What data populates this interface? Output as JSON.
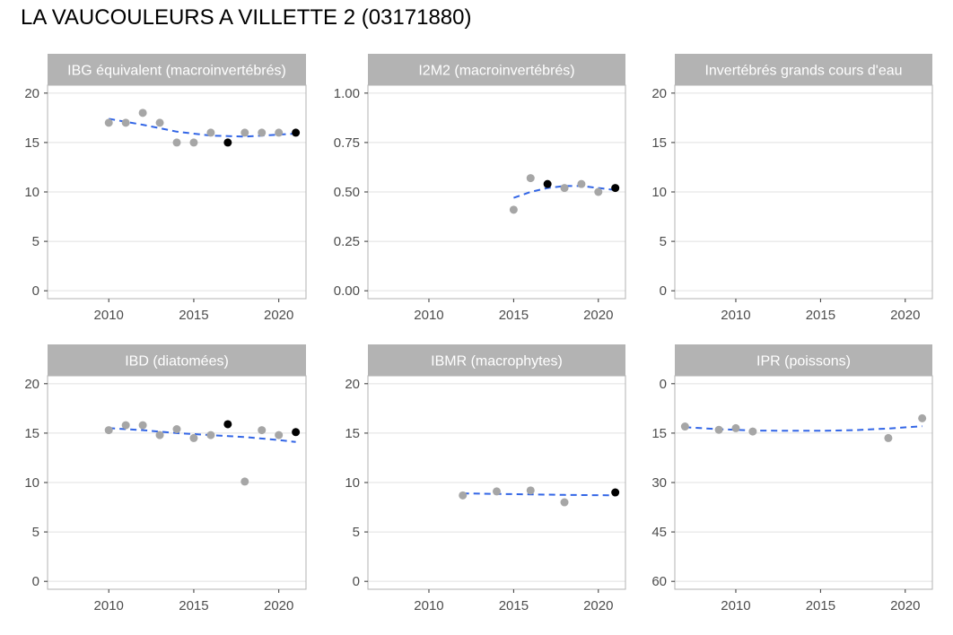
{
  "page_title": "LA VAUCOULEURS A VILLETTE 2 (03171880)",
  "colors": {
    "strip": "#b3b3b3",
    "grid": "#e0e0e0",
    "border": "#b3b3b3",
    "point_past": "#a6a6a6",
    "point_highlight": "#000000",
    "trend": "#3366e6"
  },
  "chart_data": [
    {
      "type": "scatter",
      "title": "IBG équivalent (macroinvertébrés)",
      "xlim": [
        2006.4,
        2021.6
      ],
      "ylim": [
        -0.8,
        20.8
      ],
      "x_ticks": [
        2010,
        2015,
        2020
      ],
      "y_ticks": [
        0,
        5,
        10,
        15,
        20
      ],
      "y_tick_labels": [
        "0",
        "5",
        "10",
        "15",
        "20"
      ],
      "y_reversed": false,
      "points": [
        {
          "x": 2010,
          "y": 17,
          "highlight": false
        },
        {
          "x": 2011,
          "y": 17,
          "highlight": false
        },
        {
          "x": 2012,
          "y": 18,
          "highlight": false
        },
        {
          "x": 2013,
          "y": 17,
          "highlight": false
        },
        {
          "x": 2014,
          "y": 15,
          "highlight": false
        },
        {
          "x": 2015,
          "y": 15,
          "highlight": false
        },
        {
          "x": 2016,
          "y": 16,
          "highlight": false
        },
        {
          "x": 2017,
          "y": 15,
          "highlight": true
        },
        {
          "x": 2018,
          "y": 16,
          "highlight": false
        },
        {
          "x": 2019,
          "y": 16,
          "highlight": false
        },
        {
          "x": 2020,
          "y": 16,
          "highlight": false
        },
        {
          "x": 2021,
          "y": 16,
          "highlight": true
        }
      ],
      "trend": [
        [
          2010,
          17.4
        ],
        [
          2012,
          16.8
        ],
        [
          2014,
          16.1
        ],
        [
          2016,
          15.7
        ],
        [
          2018,
          15.6
        ],
        [
          2020,
          15.8
        ],
        [
          2021,
          15.9
        ]
      ]
    },
    {
      "type": "scatter",
      "title": "I2M2 (macroinvertébrés)",
      "xlim": [
        2006.4,
        2021.6
      ],
      "ylim": [
        -0.04,
        1.04
      ],
      "x_ticks": [
        2010,
        2015,
        2020
      ],
      "y_ticks": [
        0,
        0.25,
        0.5,
        0.75,
        1
      ],
      "y_tick_labels": [
        "0.00",
        "0.25",
        "0.50",
        "0.75",
        "1.00"
      ],
      "y_reversed": false,
      "points": [
        {
          "x": 2015,
          "y": 0.41,
          "highlight": false
        },
        {
          "x": 2016,
          "y": 0.57,
          "highlight": false
        },
        {
          "x": 2017,
          "y": 0.54,
          "highlight": true
        },
        {
          "x": 2018,
          "y": 0.52,
          "highlight": false
        },
        {
          "x": 2019,
          "y": 0.54,
          "highlight": false
        },
        {
          "x": 2020,
          "y": 0.5,
          "highlight": false
        },
        {
          "x": 2021,
          "y": 0.52,
          "highlight": true
        }
      ],
      "trend": [
        [
          2015,
          0.47
        ],
        [
          2016,
          0.5
        ],
        [
          2017,
          0.52
        ],
        [
          2018,
          0.53
        ],
        [
          2019,
          0.53
        ],
        [
          2020,
          0.52
        ],
        [
          2021,
          0.51
        ]
      ]
    },
    {
      "type": "scatter",
      "title": "Invertébrés grands cours d'eau",
      "xlim": [
        2006.4,
        2021.6
      ],
      "ylim": [
        -0.8,
        20.8
      ],
      "x_ticks": [
        2010,
        2015,
        2020
      ],
      "y_ticks": [
        0,
        5,
        10,
        15,
        20
      ],
      "y_tick_labels": [
        "0",
        "5",
        "10",
        "15",
        "20"
      ],
      "y_reversed": false,
      "points": [],
      "trend": []
    },
    {
      "type": "scatter",
      "title": "IBD (diatomées)",
      "xlim": [
        2006.4,
        2021.6
      ],
      "ylim": [
        -0.8,
        20.8
      ],
      "x_ticks": [
        2010,
        2015,
        2020
      ],
      "y_ticks": [
        0,
        5,
        10,
        15,
        20
      ],
      "y_tick_labels": [
        "0",
        "5",
        "10",
        "15",
        "20"
      ],
      "y_reversed": false,
      "points": [
        {
          "x": 2010,
          "y": 15.3,
          "highlight": false
        },
        {
          "x": 2011,
          "y": 15.8,
          "highlight": false
        },
        {
          "x": 2012,
          "y": 15.8,
          "highlight": false
        },
        {
          "x": 2013,
          "y": 14.8,
          "highlight": false
        },
        {
          "x": 2014,
          "y": 15.4,
          "highlight": false
        },
        {
          "x": 2015,
          "y": 14.5,
          "highlight": false
        },
        {
          "x": 2016,
          "y": 14.8,
          "highlight": false
        },
        {
          "x": 2017,
          "y": 15.9,
          "highlight": true
        },
        {
          "x": 2018,
          "y": 10.1,
          "highlight": false
        },
        {
          "x": 2019,
          "y": 15.3,
          "highlight": false
        },
        {
          "x": 2020,
          "y": 14.8,
          "highlight": false
        },
        {
          "x": 2021,
          "y": 15.1,
          "highlight": true
        }
      ],
      "trend": [
        [
          2010,
          15.5
        ],
        [
          2012,
          15.3
        ],
        [
          2014,
          15.0
        ],
        [
          2016,
          14.8
        ],
        [
          2018,
          14.6
        ],
        [
          2020,
          14.3
        ],
        [
          2021,
          14.1
        ]
      ]
    },
    {
      "type": "scatter",
      "title": "IBMR (macrophytes)",
      "xlim": [
        2006.4,
        2021.6
      ],
      "ylim": [
        -0.8,
        20.8
      ],
      "x_ticks": [
        2010,
        2015,
        2020
      ],
      "y_ticks": [
        0,
        5,
        10,
        15,
        20
      ],
      "y_tick_labels": [
        "0",
        "5",
        "10",
        "15",
        "20"
      ],
      "y_reversed": false,
      "points": [
        {
          "x": 2012,
          "y": 8.7,
          "highlight": false
        },
        {
          "x": 2014,
          "y": 9.1,
          "highlight": false
        },
        {
          "x": 2016,
          "y": 9.2,
          "highlight": false
        },
        {
          "x": 2018,
          "y": 8.0,
          "highlight": false
        },
        {
          "x": 2021,
          "y": 9.0,
          "highlight": true
        }
      ],
      "trend": [
        [
          2012,
          8.9
        ],
        [
          2014,
          8.85
        ],
        [
          2016,
          8.8
        ],
        [
          2018,
          8.75
        ],
        [
          2021,
          8.7
        ]
      ]
    },
    {
      "type": "scatter",
      "title": "IPR (poissons)",
      "xlim": [
        2006.4,
        2021.6
      ],
      "ylim": [
        -2.4,
        62.4
      ],
      "x_ticks": [
        2010,
        2015,
        2020
      ],
      "y_ticks": [
        0,
        15,
        30,
        45,
        60
      ],
      "y_tick_labels": [
        "0",
        "15",
        "30",
        "45",
        "60"
      ],
      "y_reversed": true,
      "points": [
        {
          "x": 2007,
          "y": 13,
          "highlight": false
        },
        {
          "x": 2009,
          "y": 14,
          "highlight": false
        },
        {
          "x": 2010,
          "y": 13.5,
          "highlight": false
        },
        {
          "x": 2011,
          "y": 14.5,
          "highlight": false
        },
        {
          "x": 2019,
          "y": 16.5,
          "highlight": false
        },
        {
          "x": 2021,
          "y": 10.5,
          "highlight": false
        }
      ],
      "trend": [
        [
          2007,
          13.2
        ],
        [
          2009,
          13.8
        ],
        [
          2011,
          14.2
        ],
        [
          2013,
          14.3
        ],
        [
          2015,
          14.3
        ],
        [
          2017,
          14.1
        ],
        [
          2019,
          13.6
        ],
        [
          2021,
          12.9
        ]
      ]
    }
  ]
}
